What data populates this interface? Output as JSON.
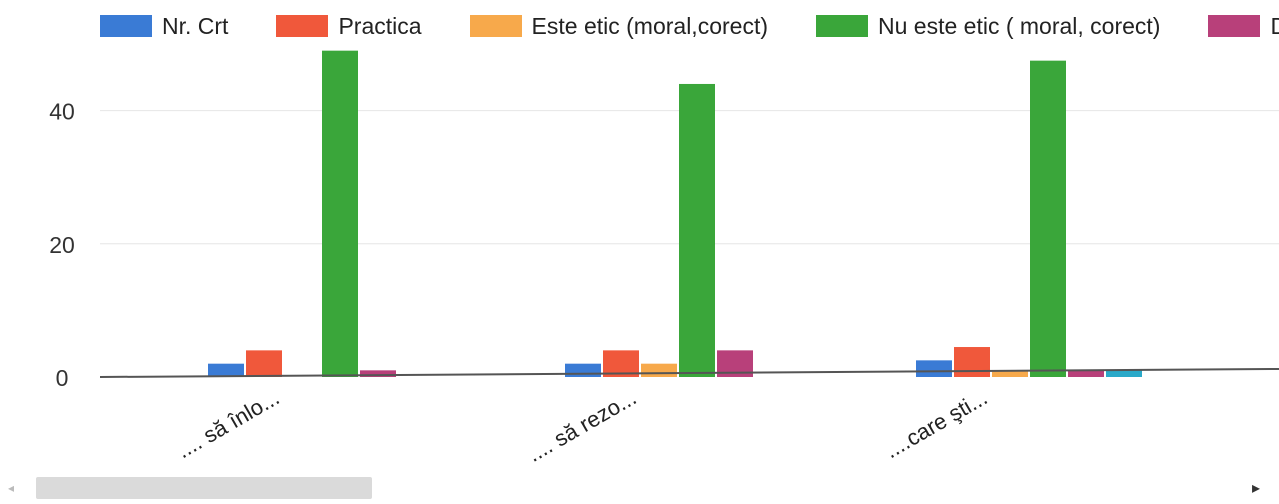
{
  "chart_data": {
    "type": "bar",
    "categories": [
      ".... să înlo...",
      ".... să rezo...",
      "....care şti..."
    ],
    "series": [
      {
        "name": "Nr. Crt",
        "color": "#3a7bd5",
        "values": [
          2,
          2,
          2.5
        ]
      },
      {
        "name": "Practica",
        "color": "#f0583b",
        "values": [
          4,
          4,
          4.5
        ]
      },
      {
        "name": "Este etic (moral,corect)",
        "color": "#f7a94b",
        "values": [
          0,
          2,
          1
        ]
      },
      {
        "name": "Nu este etic ( moral, corect)",
        "color": "#3aa63a",
        "values": [
          49,
          44,
          47.5
        ]
      },
      {
        "name": "Dep",
        "color": "#b8407a",
        "values": [
          1,
          4,
          1
        ]
      },
      {
        "name": "",
        "color": "#2aa9c9",
        "values": [
          0,
          0,
          1
        ]
      }
    ],
    "y_ticks": [
      "0",
      "20",
      "40"
    ],
    "ylim": [
      0,
      50
    ],
    "grid": true,
    "legend_position": "top"
  },
  "scrollbar": {
    "left_arrow": "◂",
    "right_arrow": "▸"
  }
}
